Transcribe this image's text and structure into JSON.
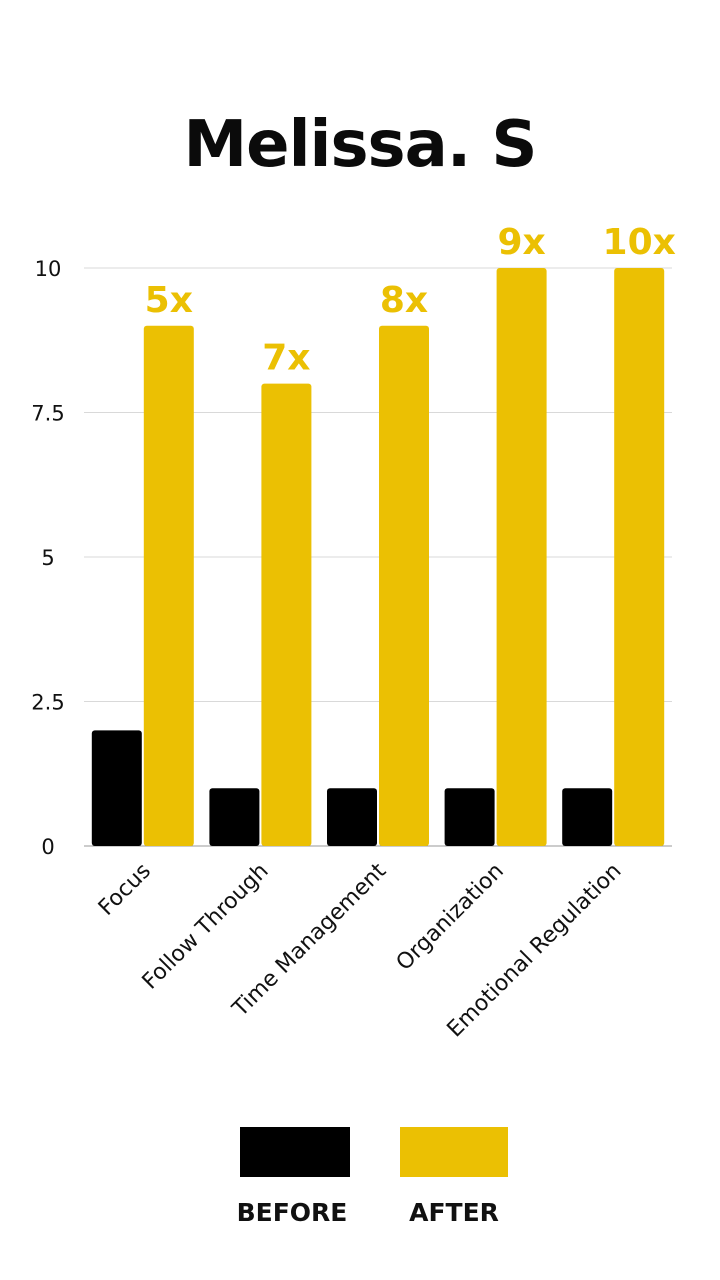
{
  "chart_data": {
    "type": "bar",
    "title": "Melissa. S",
    "categories": [
      "Focus",
      "Follow Through",
      "Time Management",
      "Organization",
      "Emotional Regulation"
    ],
    "series": [
      {
        "name": "BEFORE",
        "values": [
          2,
          1,
          1,
          1,
          1
        ],
        "color": "#000000"
      },
      {
        "name": "AFTER",
        "values": [
          9,
          8,
          9,
          10,
          10
        ],
        "color": "#ebc003"
      }
    ],
    "data_labels": [
      "5x",
      "7x",
      "8x",
      "9x",
      "10x"
    ],
    "y_ticks": [
      "0",
      "2.5",
      "5",
      "7.5",
      "10"
    ],
    "y_tick_values": [
      0,
      2.5,
      5,
      7.5,
      10
    ],
    "ylim": [
      0,
      10
    ],
    "grid": true,
    "legend_position": "bottom"
  }
}
